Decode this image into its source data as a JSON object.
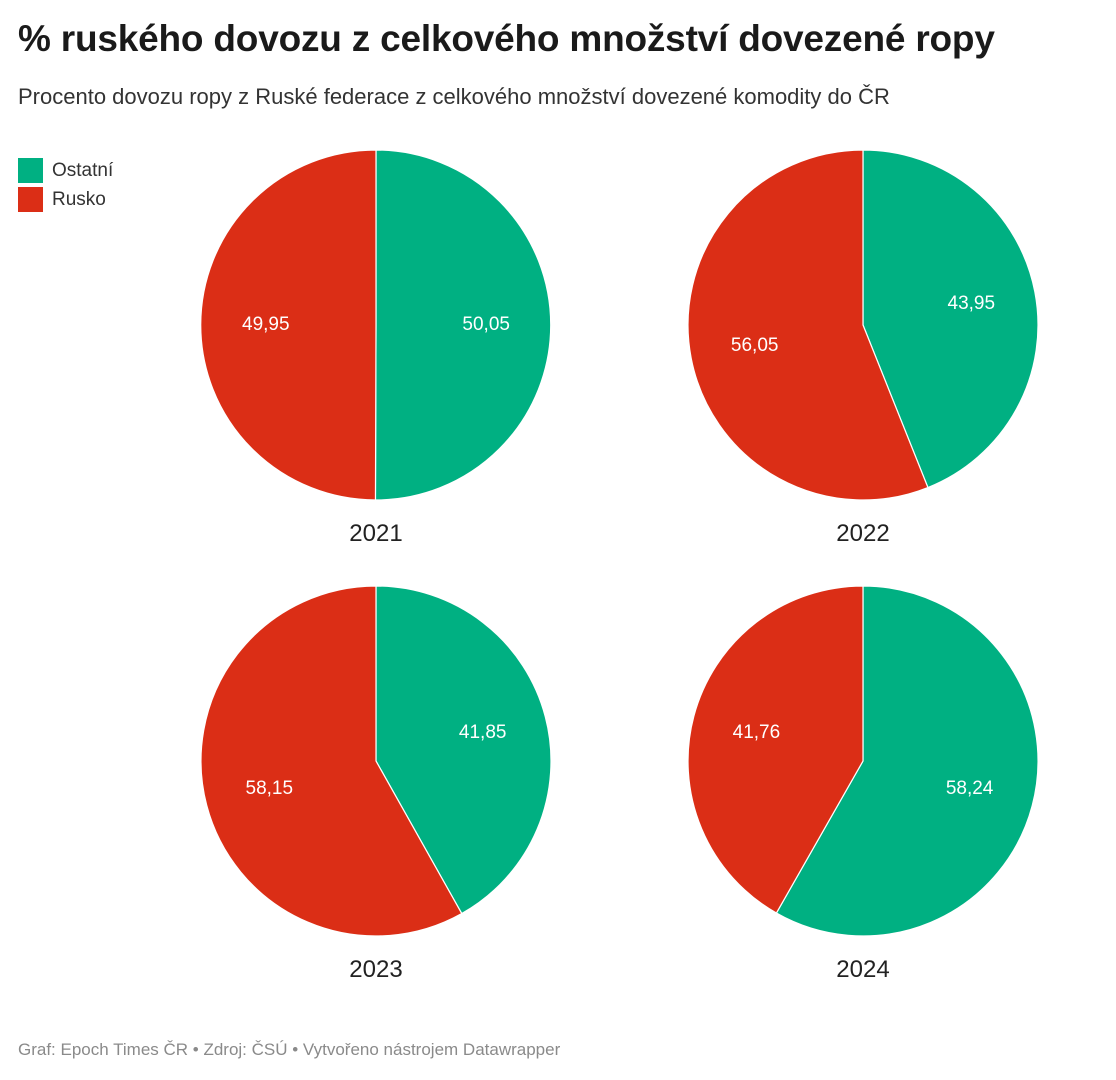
{
  "title": "% ruského dovozu z celkového množství dovezené ropy",
  "subtitle": "Procento dovozu ropy z Ruské federace z celkového množství dovezené komodity do ČR",
  "legend": [
    {
      "label": "Ostatní",
      "color": "#00b082"
    },
    {
      "label": "Rusko",
      "color": "#db2e16"
    }
  ],
  "footer": "Graf: Epoch Times ČR • Zdroj: ČSÚ • Vytvořeno nástrojem Datawrapper",
  "chart_data": [
    {
      "type": "pie",
      "label": "2021",
      "slices": [
        {
          "name": "Ostatní",
          "value": 50.05,
          "label": "50,05",
          "color": "#00b082"
        },
        {
          "name": "Rusko",
          "value": 49.95,
          "label": "49,95",
          "color": "#db2e16"
        }
      ]
    },
    {
      "type": "pie",
      "label": "2022",
      "slices": [
        {
          "name": "Ostatní",
          "value": 43.95,
          "label": "43,95",
          "color": "#00b082"
        },
        {
          "name": "Rusko",
          "value": 56.05,
          "label": "56,05",
          "color": "#db2e16"
        }
      ]
    },
    {
      "type": "pie",
      "label": "2023",
      "slices": [
        {
          "name": "Ostatní",
          "value": 41.85,
          "label": "41,85",
          "color": "#00b082"
        },
        {
          "name": "Rusko",
          "value": 58.15,
          "label": "58,15",
          "color": "#db2e16"
        }
      ]
    },
    {
      "type": "pie",
      "label": "2024",
      "slices": [
        {
          "name": "Ostatní",
          "value": 58.24,
          "label": "58,24",
          "color": "#00b082"
        },
        {
          "name": "Rusko",
          "value": 41.76,
          "label": "41,76",
          "color": "#db2e16"
        }
      ]
    }
  ]
}
